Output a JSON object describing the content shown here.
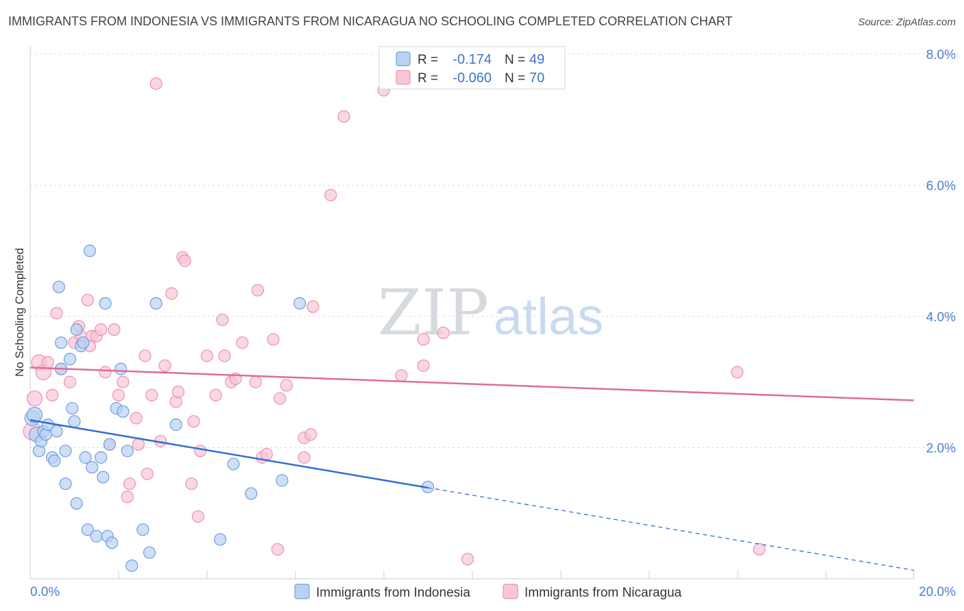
{
  "header": {
    "title": "IMMIGRANTS FROM INDONESIA VS IMMIGRANTS FROM NICARAGUA NO SCHOOLING COMPLETED CORRELATION CHART",
    "source": "Source: ZipAtlas.com"
  },
  "watermark": {
    "zip": "ZIP",
    "atlas": "atlas"
  },
  "colors": {
    "blue_fill": "#b9d2f2",
    "blue_stroke": "#6e9fe0",
    "blue_line": "#2f6fd2",
    "pink_fill": "#f8c6d6",
    "pink_stroke": "#e992b0",
    "pink_line": "#e06b96",
    "grid": "#d8dce2",
    "tick_label": "#4a7fd0"
  },
  "legend": {
    "rows": [
      {
        "r_label": "R =",
        "r_value": "-0.174",
        "n_label": "N =",
        "n_value": "49"
      },
      {
        "r_label": "R =",
        "r_value": "-0.060",
        "n_label": "N =",
        "n_value": "70"
      }
    ]
  },
  "bottom_legend": {
    "indonesia": "Immigrants from Indonesia",
    "nicaragua": "Immigrants from Nicaragua"
  },
  "chart_data": {
    "type": "scatter",
    "title": "IMMIGRANTS FROM INDONESIA VS IMMIGRANTS FROM NICARAGUA NO SCHOOLING COMPLETED CORRELATION CHART",
    "xlabel": "",
    "ylabel": "No Schooling Completed",
    "xlim": [
      0,
      20
    ],
    "ylim": [
      0,
      8
    ],
    "x_tick_labels": [
      "0.0%",
      "20.0%"
    ],
    "y_ticks": [
      2,
      4,
      6,
      8
    ],
    "y_tick_labels": [
      "2.0%",
      "4.0%",
      "6.0%",
      "8.0%"
    ],
    "series": [
      {
        "name": "Immigrants from Indonesia",
        "R": -0.174,
        "N": 49,
        "trend": {
          "x0": 0,
          "y0": 2.42,
          "x_solid_end": 9.0,
          "x1": 20,
          "y1": 0.13
        },
        "points": [
          [
            0.05,
            2.45,
            1
          ],
          [
            0.1,
            2.5,
            1
          ],
          [
            0.15,
            2.2,
            1
          ],
          [
            0.2,
            1.95,
            0
          ],
          [
            0.25,
            2.1,
            0
          ],
          [
            0.3,
            2.25,
            0
          ],
          [
            0.35,
            2.2,
            0
          ],
          [
            0.4,
            2.35,
            0
          ],
          [
            0.5,
            1.85,
            0
          ],
          [
            0.55,
            1.8,
            0
          ],
          [
            0.6,
            2.25,
            0
          ],
          [
            0.65,
            4.45,
            0
          ],
          [
            0.7,
            3.2,
            0
          ],
          [
            0.7,
            3.6,
            0
          ],
          [
            0.8,
            1.95,
            0
          ],
          [
            0.8,
            1.45,
            0
          ],
          [
            0.9,
            3.35,
            0
          ],
          [
            0.95,
            2.6,
            0
          ],
          [
            1.0,
            2.4,
            0
          ],
          [
            1.05,
            1.15,
            0
          ],
          [
            1.05,
            3.8,
            0
          ],
          [
            1.15,
            3.55,
            0
          ],
          [
            1.2,
            3.6,
            0
          ],
          [
            1.25,
            1.85,
            0
          ],
          [
            1.3,
            0.75,
            0
          ],
          [
            1.35,
            5.0,
            0
          ],
          [
            1.4,
            1.7,
            0
          ],
          [
            1.5,
            0.65,
            0
          ],
          [
            1.6,
            1.85,
            0
          ],
          [
            1.65,
            1.55,
            0
          ],
          [
            1.7,
            4.2,
            0
          ],
          [
            1.75,
            0.65,
            0
          ],
          [
            1.8,
            2.05,
            0
          ],
          [
            1.85,
            0.55,
            0
          ],
          [
            1.95,
            2.6,
            0
          ],
          [
            2.05,
            3.2,
            0
          ],
          [
            2.1,
            2.55,
            0
          ],
          [
            2.2,
            1.95,
            0
          ],
          [
            2.3,
            0.2,
            0
          ],
          [
            2.55,
            0.75,
            0
          ],
          [
            2.7,
            0.4,
            0
          ],
          [
            2.85,
            4.2,
            0
          ],
          [
            3.3,
            2.35,
            0
          ],
          [
            4.3,
            0.6,
            0
          ],
          [
            4.6,
            1.75,
            0
          ],
          [
            5.0,
            1.3,
            0
          ],
          [
            5.7,
            1.5,
            0
          ],
          [
            6.1,
            4.2,
            0
          ],
          [
            9.0,
            1.4,
            0
          ]
        ]
      },
      {
        "name": "Immigrants from Nicaragua",
        "R": -0.06,
        "N": 70,
        "trend": {
          "x0": 0,
          "y0": 3.22,
          "x1": 20,
          "y1": 2.72
        },
        "points": [
          [
            0.05,
            2.25,
            2
          ],
          [
            0.1,
            2.75,
            1
          ],
          [
            0.2,
            3.3,
            1
          ],
          [
            0.3,
            3.15,
            1
          ],
          [
            0.4,
            3.3,
            0
          ],
          [
            0.5,
            2.8,
            0
          ],
          [
            0.6,
            4.05,
            0
          ],
          [
            0.7,
            3.2,
            0
          ],
          [
            0.9,
            3.0,
            0
          ],
          [
            1.0,
            3.6,
            0
          ],
          [
            1.1,
            3.85,
            0
          ],
          [
            1.15,
            3.7,
            0
          ],
          [
            1.3,
            4.25,
            0
          ],
          [
            1.4,
            3.7,
            0
          ],
          [
            1.5,
            3.7,
            0
          ],
          [
            1.6,
            3.8,
            0
          ],
          [
            1.7,
            3.15,
            0
          ],
          [
            1.8,
            2.05,
            0
          ],
          [
            1.9,
            3.8,
            0
          ],
          [
            2.0,
            2.8,
            0
          ],
          [
            2.1,
            3.0,
            0
          ],
          [
            2.2,
            1.25,
            0
          ],
          [
            2.25,
            1.45,
            0
          ],
          [
            2.4,
            2.45,
            0
          ],
          [
            2.45,
            2.05,
            0
          ],
          [
            2.6,
            3.4,
            0
          ],
          [
            2.65,
            1.6,
            0
          ],
          [
            2.75,
            2.8,
            0
          ],
          [
            2.85,
            7.55,
            0
          ],
          [
            2.95,
            2.1,
            0
          ],
          [
            3.05,
            3.25,
            0
          ],
          [
            3.2,
            4.35,
            0
          ],
          [
            3.3,
            2.7,
            0
          ],
          [
            3.35,
            2.85,
            0
          ],
          [
            3.45,
            4.9,
            0
          ],
          [
            3.5,
            4.85,
            0
          ],
          [
            3.65,
            1.45,
            0
          ],
          [
            3.7,
            2.4,
            0
          ],
          [
            3.8,
            0.95,
            0
          ],
          [
            3.85,
            1.95,
            0
          ],
          [
            4.0,
            3.4,
            0
          ],
          [
            4.2,
            2.8,
            0
          ],
          [
            4.35,
            3.95,
            0
          ],
          [
            4.4,
            3.4,
            0
          ],
          [
            4.55,
            3.0,
            0
          ],
          [
            4.65,
            3.05,
            0
          ],
          [
            4.8,
            3.6,
            0
          ],
          [
            5.1,
            3.0,
            0
          ],
          [
            5.15,
            4.4,
            0
          ],
          [
            5.25,
            1.85,
            0
          ],
          [
            5.35,
            1.9,
            0
          ],
          [
            5.5,
            3.65,
            0
          ],
          [
            5.6,
            0.45,
            0
          ],
          [
            5.65,
            2.75,
            0
          ],
          [
            5.8,
            2.95,
            0
          ],
          [
            6.2,
            1.85,
            0
          ],
          [
            6.2,
            2.15,
            0
          ],
          [
            6.35,
            2.2,
            0
          ],
          [
            6.4,
            4.15,
            0
          ],
          [
            6.8,
            5.85,
            0
          ],
          [
            7.1,
            7.05,
            0
          ],
          [
            8.0,
            7.45,
            0
          ],
          [
            8.4,
            3.1,
            0
          ],
          [
            8.9,
            3.65,
            0
          ],
          [
            8.9,
            3.25,
            0
          ],
          [
            9.35,
            3.75,
            0
          ],
          [
            9.9,
            0.3,
            0
          ],
          [
            16.0,
            3.15,
            0
          ],
          [
            16.5,
            0.45,
            0
          ],
          [
            1.35,
            3.55,
            0
          ]
        ]
      }
    ]
  }
}
